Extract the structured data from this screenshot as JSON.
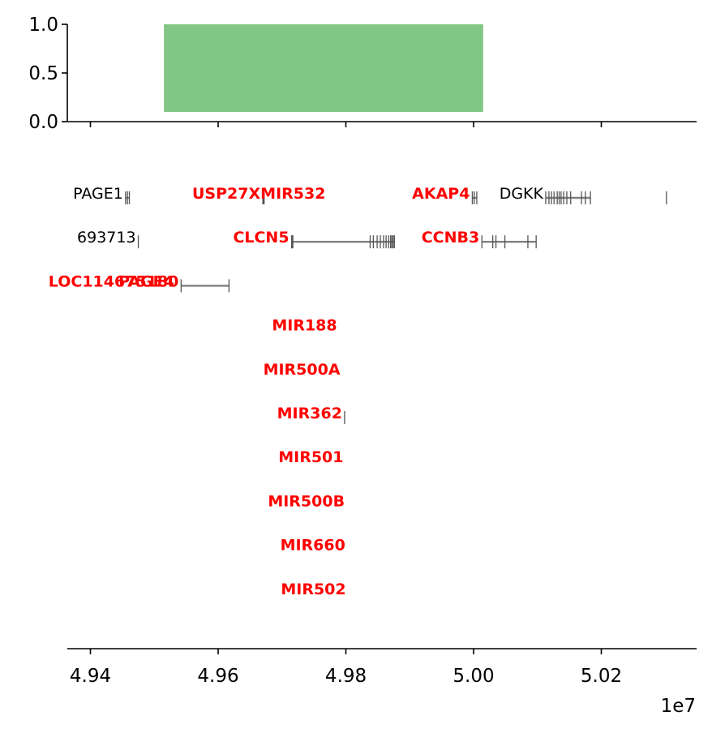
{
  "chart_data": [
    {
      "type": "bar",
      "panel": "coverage",
      "ylim": [
        0,
        1.0
      ],
      "yticks": [
        "0.0",
        "0.5",
        "1.0"
      ],
      "bars": [
        {
          "x_start": 49515000,
          "x_end": 50015000,
          "y_bottom": 0.1,
          "y_top": 1.0,
          "color": "#82c785"
        }
      ]
    },
    {
      "type": "gene-track",
      "panel": "genes",
      "xlim": [
        49365000,
        50350000
      ],
      "xticks": [
        {
          "value": 49400000,
          "label": "4.94"
        },
        {
          "value": 49600000,
          "label": "4.96"
        },
        {
          "value": 49800000,
          "label": "4.98"
        },
        {
          "value": 50000000,
          "label": "5.00"
        },
        {
          "value": 50200000,
          "label": "5.02"
        }
      ],
      "offset_label": "1e7",
      "highlight_color": "#ff0000",
      "normal_color": "#000000",
      "genes": [
        {
          "name": "PAGE1",
          "row": 0,
          "start": 49455000,
          "end": 49461000,
          "highlight": false,
          "exons": [
            49455000,
            49458000,
            49461000
          ]
        },
        {
          "name": "USP27X",
          "row": 0,
          "start": 49670000,
          "end": 49672000,
          "highlight": true,
          "exons": [
            49670000,
            49671000,
            49672000
          ]
        },
        {
          "name": "MIR532",
          "row": 0,
          "start": 49772000,
          "end": 49772000,
          "highlight": true,
          "exons": []
        },
        {
          "name": "AKAP4",
          "row": 0,
          "start": 49998000,
          "end": 50005000,
          "highlight": true,
          "exons": [
            49998000,
            50001000,
            50005000
          ]
        },
        {
          "name": "DGKK",
          "row": 0,
          "start": 50113000,
          "end": 50183000,
          "highlight": false,
          "exons": [
            50113000,
            50118000,
            50122000,
            50126000,
            50131000,
            50134000,
            50137000,
            50141000,
            50146000,
            50152000,
            50169000,
            50175000,
            50183000
          ]
        },
        {
          "name": "",
          "row": 0,
          "start": 50302000,
          "end": 50302000,
          "highlight": false,
          "exons": [
            50302000
          ]
        },
        {
          "name": "693713",
          "row": 1,
          "start": 49475000,
          "end": 49475000,
          "highlight": false,
          "exons": [
            49475000
          ]
        },
        {
          "name": "CLCN5",
          "row": 1,
          "start": 49715000,
          "end": 49876000,
          "highlight": true,
          "exons": [
            49715000,
            49716000,
            49717000,
            49838000,
            49843000,
            49849000,
            49854000,
            49859000,
            49863000,
            49867000,
            49870000,
            49872000,
            49874000,
            49876000
          ]
        },
        {
          "name": "CCNB3",
          "row": 1,
          "start": 50013000,
          "end": 50098000,
          "highlight": true,
          "exons": [
            50013000,
            50030000,
            50035000,
            50049000,
            50085000,
            50098000
          ]
        },
        {
          "name": "PAGE4",
          "row": 2,
          "start": 49535000,
          "end": 49535000,
          "highlight": true,
          "exons": []
        },
        {
          "name": "LOC114675180",
          "row": 2,
          "start": 49542000,
          "end": 49617000,
          "highlight": true,
          "exons": [
            49542000,
            49617000
          ]
        },
        {
          "name": "MIR188",
          "row": 3,
          "start": 49790000,
          "end": 49790000,
          "highlight": true,
          "exons": []
        },
        {
          "name": "MIR500A",
          "row": 4,
          "start": 49795000,
          "end": 49795000,
          "highlight": true,
          "exons": []
        },
        {
          "name": "MIR362",
          "row": 5,
          "start": 49798000,
          "end": 49798000,
          "highlight": true,
          "exons": [
            49798000
          ]
        },
        {
          "name": "MIR501",
          "row": 6,
          "start": 49800000,
          "end": 49800000,
          "highlight": true,
          "exons": []
        },
        {
          "name": "MIR500B",
          "row": 7,
          "start": 49802000,
          "end": 49802000,
          "highlight": true,
          "exons": []
        },
        {
          "name": "MIR660",
          "row": 8,
          "start": 49803000,
          "end": 49803000,
          "highlight": true,
          "exons": []
        },
        {
          "name": "MIR502",
          "row": 9,
          "start": 49804000,
          "end": 49804000,
          "highlight": true,
          "exons": []
        }
      ]
    }
  ]
}
